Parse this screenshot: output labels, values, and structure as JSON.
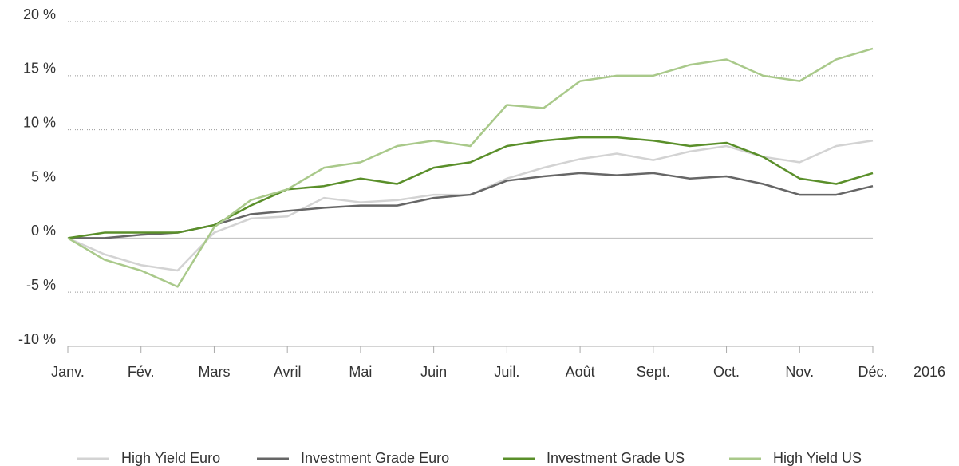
{
  "chart_data": {
    "type": "line",
    "annotation": "2016",
    "x": [
      0,
      0.5,
      1,
      1.5,
      2,
      2.5,
      3,
      3.5,
      4,
      4.5,
      5,
      5.5,
      6,
      6.5,
      7,
      7.5,
      8,
      8.5,
      9,
      9.5,
      10,
      10.5,
      11
    ],
    "xlim": [
      0,
      11
    ],
    "xticks": [
      {
        "value": 0,
        "label": "Janv."
      },
      {
        "value": 1,
        "label": "Fév."
      },
      {
        "value": 2,
        "label": "Mars"
      },
      {
        "value": 3,
        "label": "Avril"
      },
      {
        "value": 4,
        "label": "Mai"
      },
      {
        "value": 5,
        "label": "Juin"
      },
      {
        "value": 6,
        "label": "Juil."
      },
      {
        "value": 7,
        "label": "Août"
      },
      {
        "value": 8,
        "label": "Sept."
      },
      {
        "value": 9,
        "label": "Oct."
      },
      {
        "value": 10,
        "label": "Nov."
      },
      {
        "value": 11,
        "label": "Déc."
      }
    ],
    "ylim": [
      -10,
      20
    ],
    "yticks": [
      {
        "value": -10,
        "label": "-10 %"
      },
      {
        "value": -5,
        "label": "-5 %"
      },
      {
        "value": 0,
        "label": "0 %"
      },
      {
        "value": 5,
        "label": "5 %"
      },
      {
        "value": 10,
        "label": "10 %"
      },
      {
        "value": 15,
        "label": "15 %"
      },
      {
        "value": 20,
        "label": "20 %"
      }
    ],
    "grid": true,
    "legend": "bottom",
    "series": [
      {
        "name": "High Yield Euro",
        "color": "#d3d3d3",
        "values": [
          0,
          -1.5,
          -2.5,
          -3,
          0.5,
          1.8,
          2,
          3.7,
          3.3,
          3.5,
          4,
          4,
          5.5,
          6.5,
          7.3,
          7.8,
          7.2,
          8,
          8.5,
          7.5,
          7,
          8.5,
          9
        ]
      },
      {
        "name": "Investment Grade Euro",
        "color": "#666666",
        "values": [
          0,
          0,
          0.3,
          0.5,
          1.2,
          2.2,
          2.5,
          2.8,
          3,
          3,
          3.7,
          4,
          5.3,
          5.7,
          6,
          5.8,
          6,
          5.5,
          5.7,
          5,
          4,
          4,
          4.8
        ]
      },
      {
        "name": "Investment Grade US",
        "color": "#5a8f2a",
        "values": [
          0,
          0.5,
          0.5,
          0.5,
          1.2,
          3,
          4.5,
          4.8,
          5.5,
          5,
          6.5,
          7,
          8.5,
          9,
          9.3,
          9.3,
          9,
          8.5,
          8.8,
          7.5,
          5.5,
          5,
          6
        ]
      },
      {
        "name": "High Yield US",
        "color": "#a9c98a",
        "values": [
          0,
          -2,
          -3,
          -4.5,
          1,
          3.5,
          4.5,
          6.5,
          7,
          8.5,
          9,
          8.5,
          12.3,
          12,
          14.5,
          15,
          15,
          16,
          16.5,
          15,
          14.5,
          16.5,
          17.5
        ]
      }
    ]
  }
}
